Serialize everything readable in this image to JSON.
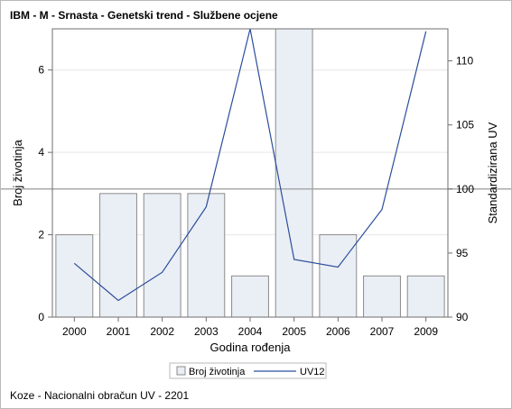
{
  "title": "IBM - M - Srnasta - Genetski trend - Službene ocjene",
  "footnote": "Koze - Nacionalni obračun UV - 2201",
  "chart_data": {
    "type": "bar",
    "categories": [
      "2000",
      "2001",
      "2002",
      "2003",
      "2004",
      "2005",
      "2006",
      "2007",
      "2009"
    ],
    "xlabel": "Godina rođenja",
    "ylabel": "Broj životinja",
    "y2label": "Standardizirana UV",
    "ylim": [
      0,
      7
    ],
    "yticks": [
      0,
      2,
      4,
      6
    ],
    "y2lim": [
      90,
      112.5
    ],
    "y2ticks": [
      90,
      95,
      100,
      105,
      110
    ],
    "reference_line": 100,
    "grid": true,
    "legend_position": "bottom",
    "series": [
      {
        "name": "Broj životinja",
        "type": "bar",
        "axis": "left",
        "values": [
          2,
          3,
          3,
          3,
          1,
          7,
          2,
          1,
          1
        ]
      },
      {
        "name": "UV12",
        "type": "line",
        "axis": "right",
        "values": [
          94.2,
          91.3,
          93.5,
          98.6,
          112.5,
          94.5,
          93.9,
          98.4,
          112.3
        ]
      }
    ],
    "colors": {
      "bar_fill": "#eaeef5",
      "bar_stroke": "#8b8b8b",
      "line": "#2b4e9c",
      "reference_line": "#a9a9a9",
      "grid": "#e6e6e6"
    }
  }
}
